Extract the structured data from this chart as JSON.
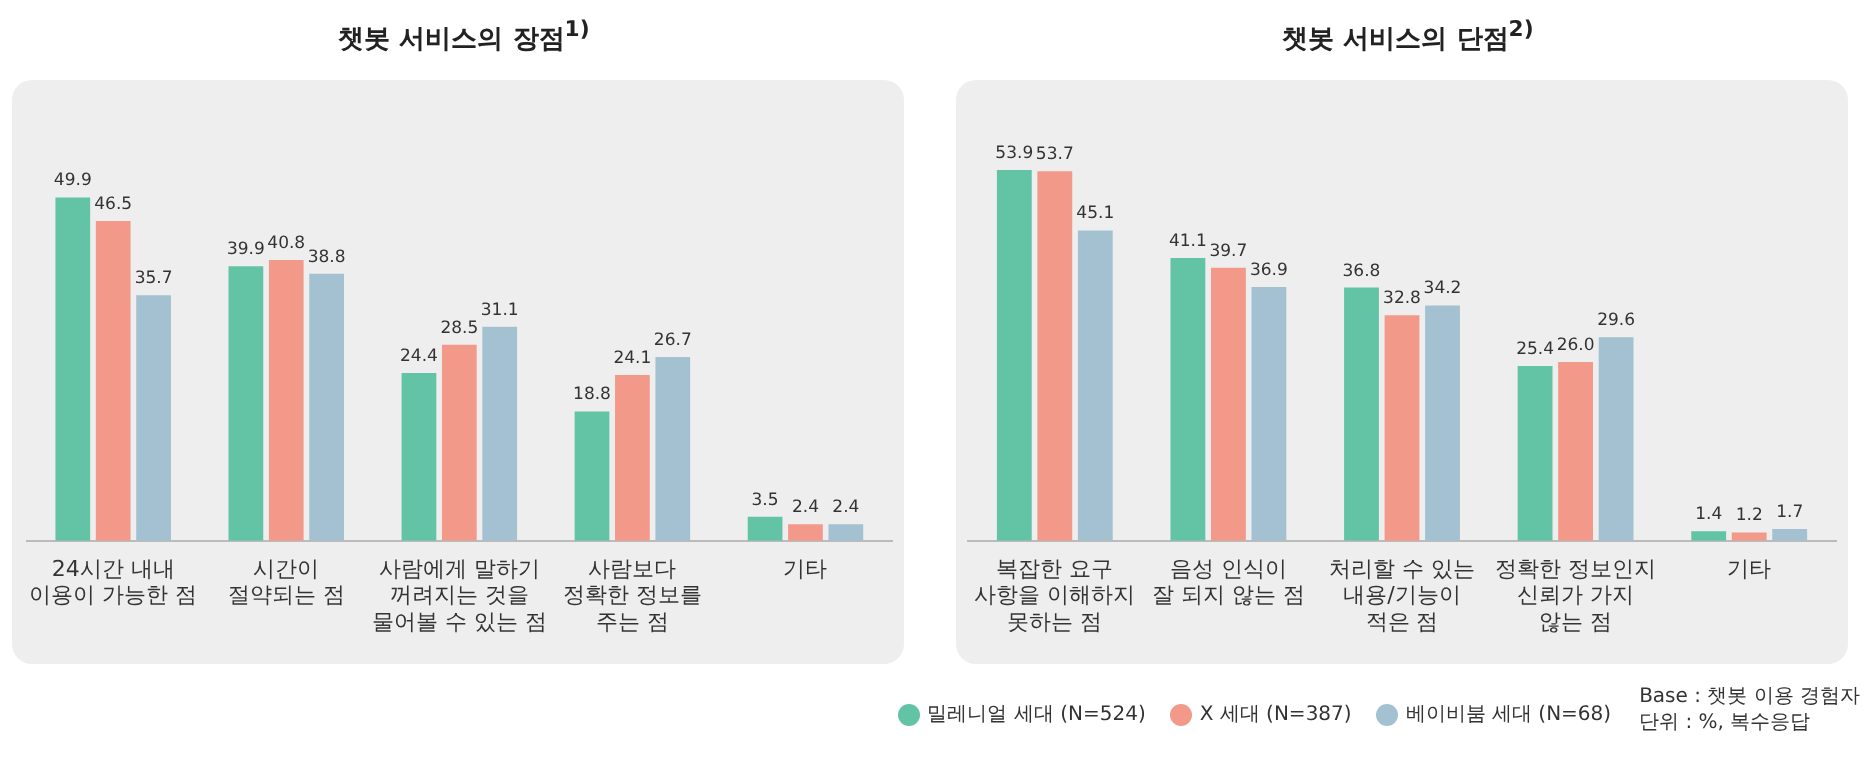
{
  "chart_data": [
    {
      "type": "bar",
      "title": "챗봇 서비스의 장점$^{1)}$",
      "categories": [
        "24시간 내내\n이용이 가능한 점",
        "시간이\n절약되는 점",
        "사람에게 말하기\n꺼려지는 것을\n물어볼 수 있는 점",
        "사람보다\n정확한 정보를\n주는 점",
        "기타"
      ],
      "series": [
        {
          "color": "#62c3a5",
          "values": [
            49.9,
            39.9,
            24.4,
            18.8,
            3.5
          ]
        },
        {
          "color": "#f2998a",
          "values": [
            46.5,
            40.8,
            28.5,
            24.1,
            2.4
          ]
        },
        {
          "color": "#a3c1d1",
          "values": [
            35.7,
            38.8,
            31.1,
            26.7,
            2.4
          ]
        }
      ],
      "data_labels": true,
      "grid": false,
      "legend": false
    },
    {
      "type": "bar",
      "title": "챗봇 서비스의 단점$^{2)}$",
      "categories": [
        "복잡한 요구\n사항을 이해하지\n못하는 점",
        "음성 인식이\n잘 되지 않는 점",
        "처리할 수 있는\n내용/기능이\n적은 점",
        "정확한 정보인지\n신뢰가 가지\n않는 점",
        "기타"
      ],
      "series": [
        {
          "name": "밀레니얼 세대 (N=524)",
          "color": "#62c3a5",
          "values": [
            53.9,
            41.1,
            36.8,
            25.4,
            1.4
          ]
        },
        {
          "name": "X 세대 (N=387)",
          "color": "#f2998a",
          "values": [
            53.7,
            39.7,
            32.8,
            26.0,
            1.2
          ],
          "value_labels": [
            "53.7",
            "39.7",
            "32.8",
            "26.0",
            "1.2"
          ]
        },
        {
          "name": "베이비붐 세대 (N=68)",
          "color": "#a3c1d1",
          "values": [
            45.1,
            36.9,
            34.2,
            29.6,
            1.7
          ]
        }
      ],
      "data_labels": true,
      "grid": false,
      "legend": "bottom",
      "annotations": [
        "Base : 챗봇 이용 경험자",
        "단위 : %, 복수응답"
      ]
    }
  ]
}
